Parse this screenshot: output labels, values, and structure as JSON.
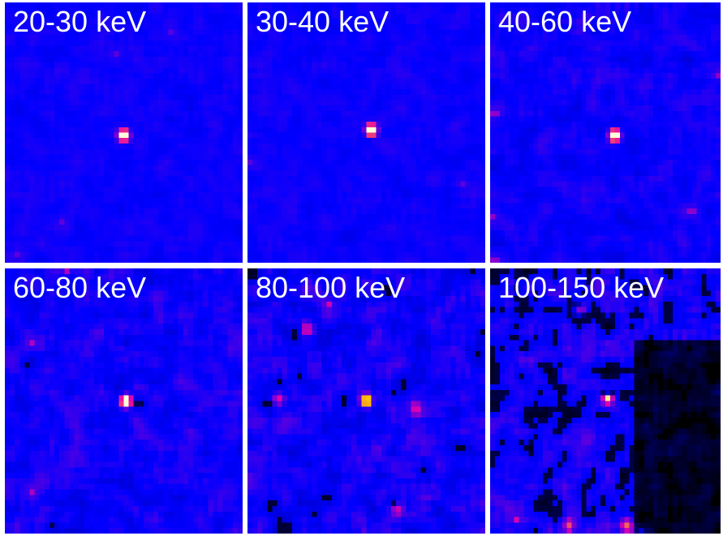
{
  "panels": [
    {
      "label": "20-30 keV",
      "bg": "#1a1ad0",
      "noise": 0.35,
      "hotspot_strength": 0.9,
      "dark_fraction": 0.0
    },
    {
      "label": "30-40 keV",
      "bg": "#1818d8",
      "noise": 0.35,
      "hotspot_strength": 1.0,
      "dark_fraction": 0.0
    },
    {
      "label": "40-60 keV",
      "bg": "#2420e0",
      "noise": 0.55,
      "hotspot_strength": 1.0,
      "dark_fraction": 0.0
    },
    {
      "label": "60-80 keV",
      "bg": "#1010b0",
      "noise": 0.7,
      "hotspot_strength": 1.0,
      "dark_fraction": 0.3
    },
    {
      "label": "80-100 keV",
      "bg": "#1010b8",
      "noise": 0.85,
      "hotspot_strength": 0.75,
      "dark_fraction": 0.35
    },
    {
      "label": "100-150 keV",
      "bg": "#0a0a90",
      "noise": 0.9,
      "hotspot_strength": 0.6,
      "dark_fraction": 0.5
    }
  ]
}
